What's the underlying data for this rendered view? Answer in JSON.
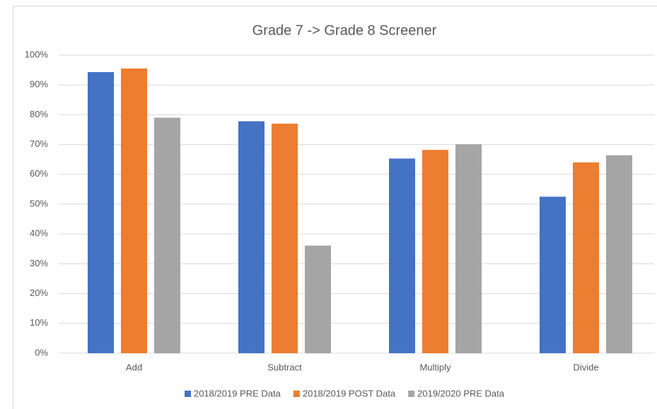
{
  "chart_data": {
    "type": "bar",
    "title": "Grade 7 -> Grade 8 Screener",
    "categories": [
      "Add",
      "Subtract",
      "Multiply",
      "Divide"
    ],
    "series": [
      {
        "name": "2018/2019 PRE Data",
        "color": "#4472c4",
        "values": [
          94.3,
          77.8,
          65.3,
          52.5
        ]
      },
      {
        "name": "2018/2019 POST Data",
        "color": "#ed7d31",
        "values": [
          95.5,
          77.0,
          68.2,
          64.0
        ]
      },
      {
        "name": "2019/2020 PRE Data",
        "color": "#a5a5a5",
        "values": [
          79.0,
          36.1,
          70.1,
          66.4
        ]
      }
    ],
    "ylim": [
      0,
      100
    ],
    "yticks": [
      {
        "value": 0,
        "label": "0%"
      },
      {
        "value": 10,
        "label": "10%"
      },
      {
        "value": 20,
        "label": "20%"
      },
      {
        "value": 30,
        "label": "30%"
      },
      {
        "value": 40,
        "label": "40%"
      },
      {
        "value": 50,
        "label": "50%"
      },
      {
        "value": 60,
        "label": "60%"
      },
      {
        "value": 70,
        "label": "70%"
      },
      {
        "value": 80,
        "label": "80%"
      },
      {
        "value": 90,
        "label": "90%"
      },
      {
        "value": 100,
        "label": "100%"
      }
    ],
    "grid": true,
    "legend": "bottom"
  }
}
